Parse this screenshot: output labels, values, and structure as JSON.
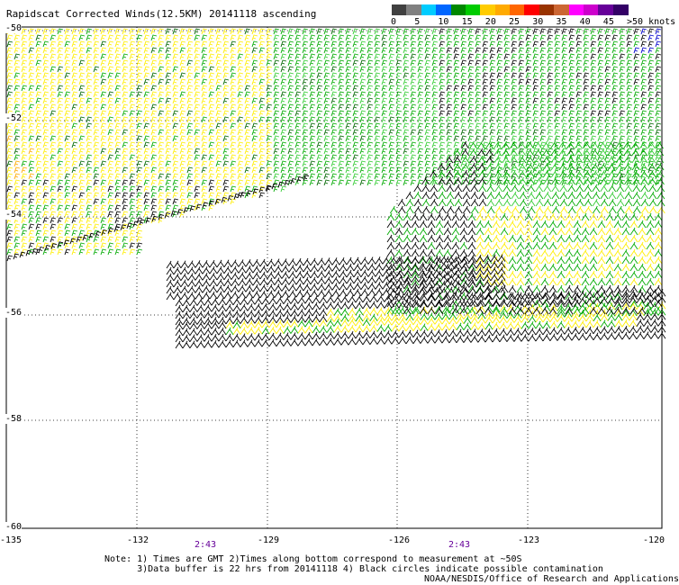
{
  "title": "Rapidscat Corrected Winds(12.5KM) 20141118 ascending",
  "scale": {
    "colors": [
      "#404040",
      "#808080",
      "#00ccff",
      "#0066ff",
      "#008800",
      "#00cc00",
      "#ffcc00",
      "#ffaa00",
      "#ff6600",
      "#ff0000",
      "#993300",
      "#cc6633",
      "#ff00ff",
      "#cc00cc",
      "#660099",
      "#330066"
    ],
    "ticks": [
      "0",
      "5",
      "10",
      "15",
      "20",
      "25",
      "30",
      "35",
      "40",
      "45",
      ">50 knots"
    ]
  },
  "map": {
    "latitudes": [
      "-50",
      "-52",
      "-54",
      "-56",
      "-58",
      "-60"
    ],
    "longitudes": [
      "-135",
      "-132",
      "-129",
      "-126",
      "-123",
      "-120"
    ],
    "times": [
      "2:43",
      "2:43"
    ],
    "barb_colors": {
      "black": "#000000",
      "green": "#00aa00",
      "light_green": "#33cc33",
      "dark_green": "#006600",
      "yellow": "#ffee00",
      "orange": "#ffaa00",
      "blue": "#0000cc"
    }
  },
  "notes": {
    "line1": "Note: 1) Times are GMT 2)Times along bottom correspond to measurement at ~50S",
    "line2": "      3)Data buffer is 22 hrs from 20141118 4) Black circles indicate possible contamination",
    "credit": "NOAA/NESDIS/Office of Research and Applications"
  }
}
